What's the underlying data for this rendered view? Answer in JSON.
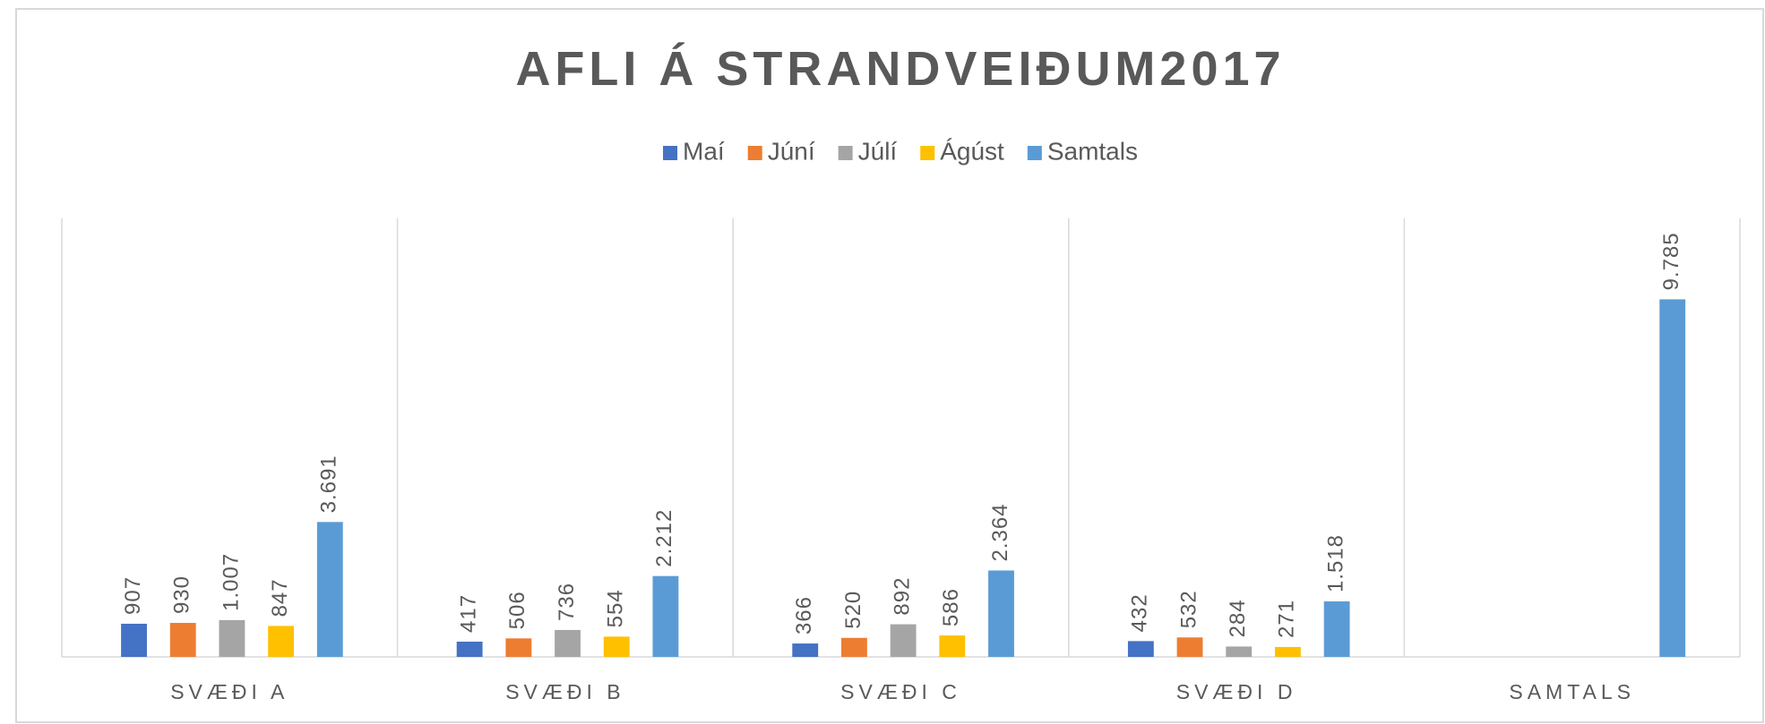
{
  "chart_data": {
    "type": "bar",
    "title": "AFLI Á STRANDVEIÐUM2017",
    "categories": [
      "SVÆÐI A",
      "SVÆÐI B",
      "SVÆÐI C",
      "SVÆÐI D",
      "SAMTALS"
    ],
    "series": [
      {
        "name": "Maí",
        "color": "#4472c4",
        "values": [
          907,
          417,
          366,
          432,
          null
        ],
        "value_labels": [
          "907",
          "417",
          "366",
          "432",
          null
        ]
      },
      {
        "name": "Júní",
        "color": "#ed7d31",
        "values": [
          930,
          506,
          520,
          532,
          null
        ],
        "value_labels": [
          "930",
          "506",
          "520",
          "532",
          null
        ]
      },
      {
        "name": "Júlí",
        "color": "#a5a5a5",
        "values": [
          1007,
          736,
          892,
          284,
          null
        ],
        "value_labels": [
          "1.007",
          "736",
          "892",
          "284",
          null
        ]
      },
      {
        "name": "Ágúst",
        "color": "#ffc000",
        "values": [
          847,
          554,
          586,
          271,
          null
        ],
        "value_labels": [
          "847",
          "554",
          "586",
          "271",
          null
        ]
      },
      {
        "name": "Samtals",
        "color": "#5b9bd5",
        "values": [
          3691,
          2212,
          2364,
          1518,
          9785
        ],
        "value_labels": [
          "3.691",
          "2.212",
          "2.364",
          "1.518",
          "9.785"
        ]
      }
    ],
    "ylim": [
      0,
      12000
    ],
    "legend": "top"
  }
}
